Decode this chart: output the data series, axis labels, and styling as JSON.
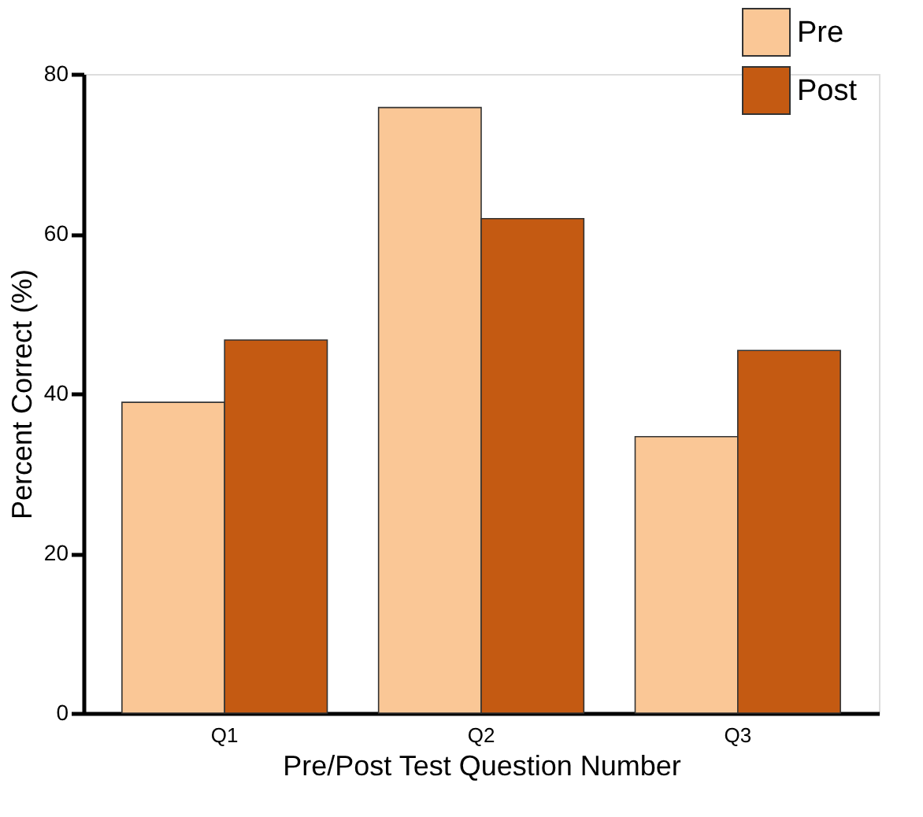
{
  "chart_data": {
    "type": "bar",
    "xlabel": "Pre/Post Test Question Number",
    "ylabel": "Percent Correct (%)",
    "categories": [
      "Q1",
      "Q2",
      "Q3"
    ],
    "series": [
      {
        "name": "Pre",
        "color": "#fac796",
        "values": [
          38.9,
          75.8,
          34.6
        ]
      },
      {
        "name": "Post",
        "color": "#c45a12",
        "values": [
          46.7,
          61.9,
          45.4
        ]
      }
    ],
    "ylim": [
      0,
      80
    ],
    "yticks": [
      0,
      20,
      40,
      60,
      80
    ],
    "grid": false,
    "legend": "top right"
  }
}
